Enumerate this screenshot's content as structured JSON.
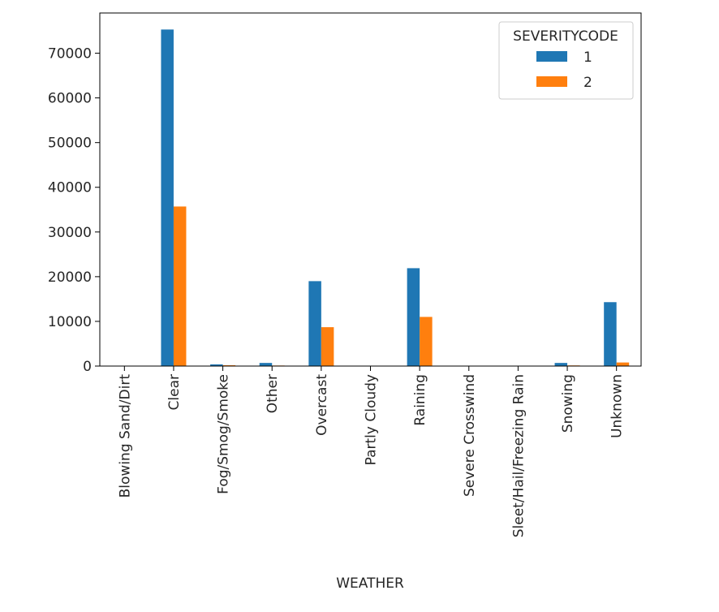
{
  "chart_data": {
    "type": "bar",
    "title": "",
    "xlabel": "WEATHER",
    "ylabel": "",
    "ylim": [
      0,
      79000
    ],
    "yticks": [
      0,
      10000,
      20000,
      30000,
      40000,
      50000,
      60000,
      70000
    ],
    "grid": false,
    "legend": {
      "title": "SEVERITYCODE",
      "placement": "top-right"
    },
    "categories": [
      "Blowing Sand/Dirt",
      "Clear",
      "Fog/Smog/Smoke",
      "Other",
      "Overcast",
      "Partly Cloudy",
      "Raining",
      "Severe Crosswind",
      "Sleet/Hail/Freezing Rain",
      "Snowing",
      "Unknown"
    ],
    "series": [
      {
        "name": "1",
        "color": "#1f77b4",
        "values": [
          40,
          75300,
          380,
          700,
          19000,
          3,
          21900,
          20,
          80,
          700,
          14300
        ]
      },
      {
        "name": "2",
        "color": "#ff7f0e",
        "values": [
          15,
          35700,
          180,
          120,
          8700,
          2,
          11000,
          5,
          30,
          140,
          800
        ]
      }
    ]
  }
}
